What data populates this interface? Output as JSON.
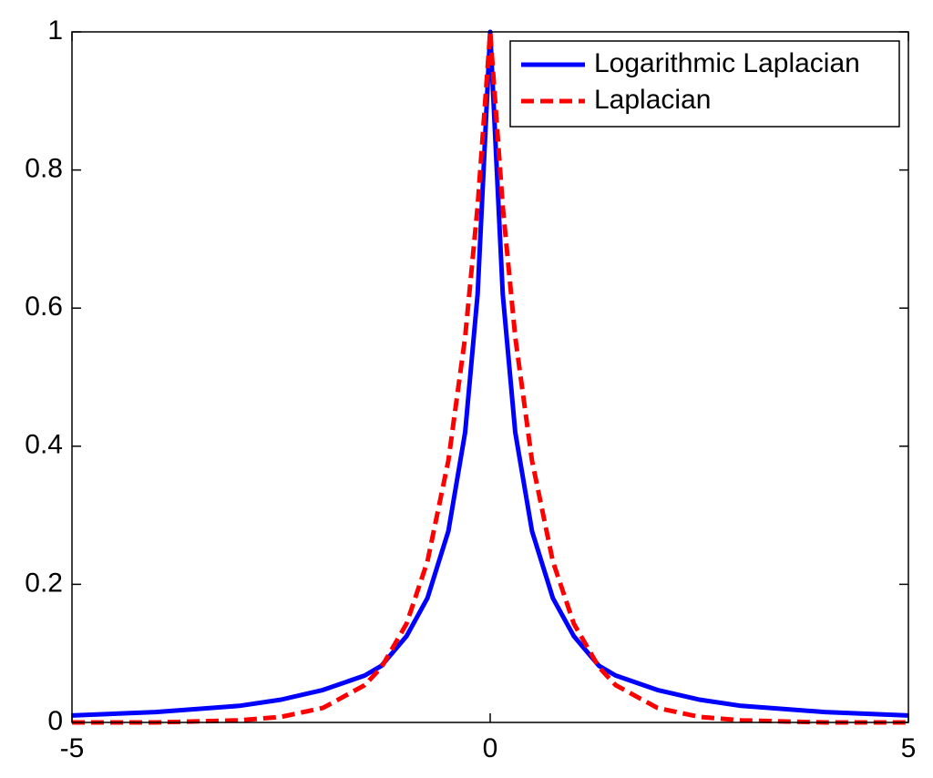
{
  "chart_data": {
    "type": "line",
    "x": [
      -5,
      -4,
      -3,
      -2.5,
      -2,
      -1.5,
      -1.3,
      -1,
      -0.75,
      -0.5,
      -0.3,
      -0.15,
      0,
      0.15,
      0.3,
      0.5,
      0.75,
      1,
      1.3,
      1.5,
      2,
      2.5,
      3,
      4,
      5
    ],
    "series": [
      {
        "name": "Logarithmic Laplacian",
        "color": "#0000ff",
        "dash": false,
        "values": [
          0.01,
          0.015,
          0.024,
          0.033,
          0.047,
          0.068,
          0.082,
          0.125,
          0.18,
          0.277,
          0.42,
          0.62,
          1,
          0.62,
          0.42,
          0.277,
          0.18,
          0.125,
          0.082,
          0.068,
          0.047,
          0.033,
          0.024,
          0.015,
          0.01
        ]
      },
      {
        "name": "Laplacian",
        "color": "#ff0000",
        "dash": true,
        "values": [
          0,
          0,
          0.003,
          0.008,
          0.021,
          0.054,
          0.08,
          0.143,
          0.233,
          0.379,
          0.558,
          0.747,
          1,
          0.747,
          0.558,
          0.379,
          0.233,
          0.143,
          0.08,
          0.054,
          0.021,
          0.008,
          0.003,
          0,
          0
        ]
      }
    ],
    "xlim": [
      -5,
      5
    ],
    "xticks": [
      -5,
      0,
      5
    ],
    "ylim": [
      0,
      1
    ],
    "yticks": [
      0,
      0.2,
      0.4,
      0.6,
      0.8,
      1
    ],
    "legend": "top-right"
  }
}
